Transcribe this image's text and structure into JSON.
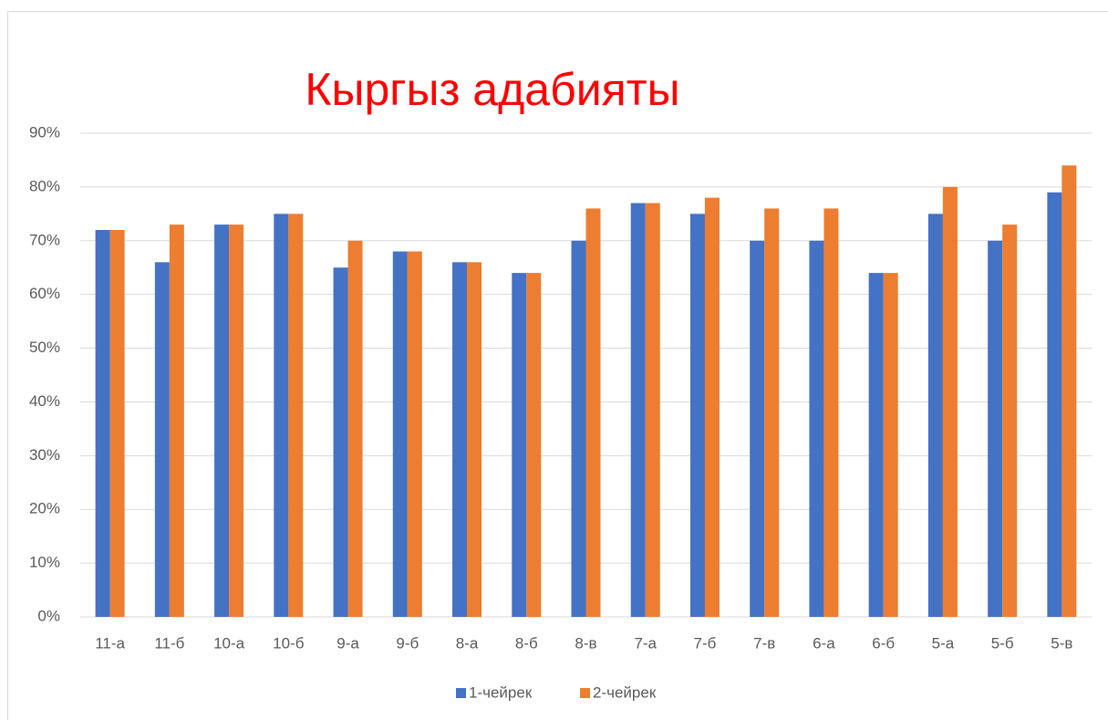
{
  "chart_data": {
    "type": "bar",
    "title": "Кыргыз адабияты",
    "categories": [
      "11-а",
      "11-б",
      "10-а",
      "10-б",
      "9-а",
      "9-б",
      "8-а",
      "8-б",
      "8-в",
      "7-а",
      "7-б",
      "7-в",
      "6-а",
      "6-б",
      "5-а",
      "5-б",
      "5-в"
    ],
    "series": [
      {
        "name": "1-чейрек",
        "color": "#4472c4",
        "values": [
          72,
          66,
          73,
          75,
          65,
          68,
          66,
          64,
          70,
          77,
          75,
          70,
          70,
          64,
          75,
          70,
          79
        ]
      },
      {
        "name": "2-чейрек",
        "color": "#ed7d31",
        "values": [
          72,
          73,
          73,
          75,
          70,
          68,
          66,
          64,
          76,
          77,
          78,
          76,
          76,
          64,
          80,
          73,
          84
        ]
      }
    ],
    "ylim": [
      0,
      90
    ],
    "yticks": [
      {
        "value": 0,
        "label": "0%"
      },
      {
        "value": 10,
        "label": "10%"
      },
      {
        "value": 20,
        "label": "20%"
      },
      {
        "value": 30,
        "label": "30%"
      },
      {
        "value": 40,
        "label": "40%"
      },
      {
        "value": 50,
        "label": "50%"
      },
      {
        "value": 60,
        "label": "60%"
      },
      {
        "value": 70,
        "label": "70%"
      },
      {
        "value": 80,
        "label": "80%"
      },
      {
        "value": 90,
        "label": "90%"
      }
    ],
    "grid": true,
    "legend": "bottom"
  }
}
